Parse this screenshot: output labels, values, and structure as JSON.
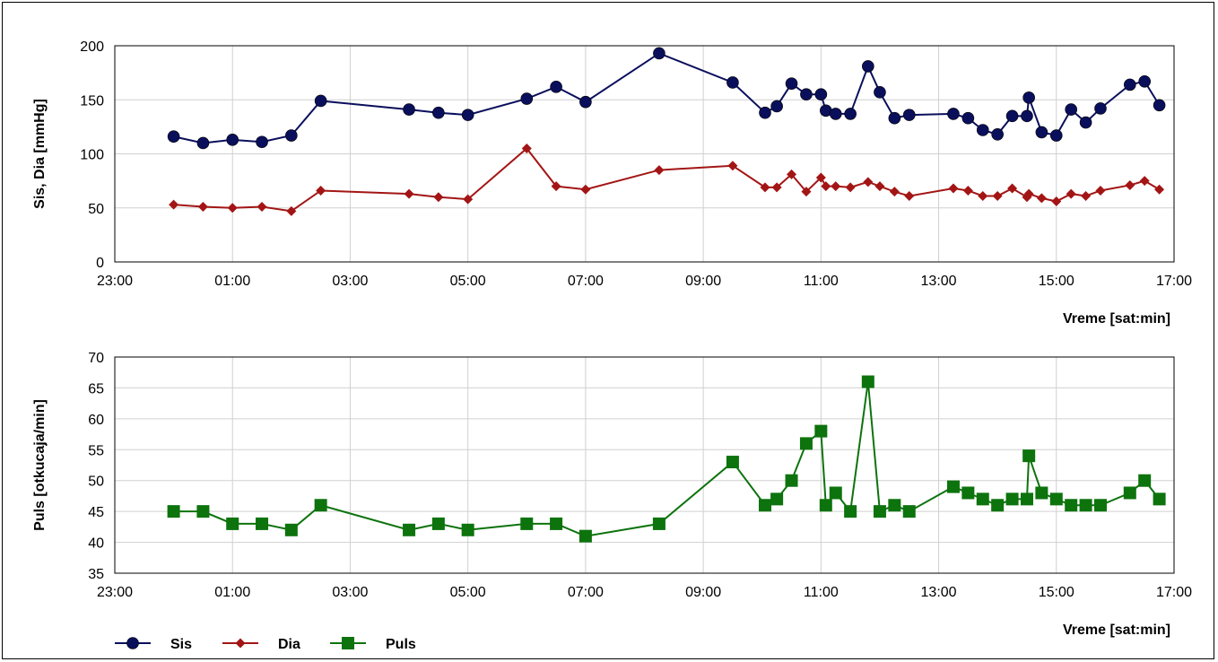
{
  "chart_data": [
    {
      "type": "line",
      "ylabel": "Sis, Dia [mmHg]",
      "xlabel": "Vreme [sat:min]",
      "ylim": [
        0,
        200
      ],
      "yticks": [
        0,
        50,
        100,
        150,
        200
      ],
      "xlim": [
        "23:00",
        "17:00"
      ],
      "xticks": [
        "23:00",
        "01:00",
        "03:00",
        "05:00",
        "07:00",
        "09:00",
        "11:00",
        "13:00",
        "15:00",
        "17:00"
      ],
      "grid": true,
      "series": [
        {
          "name": "Sis",
          "color": "#0a0f5c",
          "marker": "circle",
          "points": [
            [
              "00:00",
              116
            ],
            [
              "00:30",
              110
            ],
            [
              "01:00",
              113
            ],
            [
              "01:30",
              111
            ],
            [
              "02:00",
              117
            ],
            [
              "02:30",
              149
            ],
            [
              "04:00",
              141
            ],
            [
              "04:30",
              138
            ],
            [
              "05:00",
              136
            ],
            [
              "06:00",
              151
            ],
            [
              "06:30",
              162
            ],
            [
              "07:00",
              148
            ],
            [
              "08:15",
              193
            ],
            [
              "09:30",
              166
            ],
            [
              "10:03",
              138
            ],
            [
              "10:15",
              144
            ],
            [
              "10:30",
              165
            ],
            [
              "10:45",
              155
            ],
            [
              "11:00",
              155
            ],
            [
              "11:05",
              140
            ],
            [
              "11:15",
              137
            ],
            [
              "11:30",
              137
            ],
            [
              "11:48",
              181
            ],
            [
              "12:00",
              157
            ],
            [
              "12:15",
              133
            ],
            [
              "12:30",
              136
            ],
            [
              "13:15",
              137
            ],
            [
              "13:30",
              133
            ],
            [
              "13:45",
              122
            ],
            [
              "14:00",
              118
            ],
            [
              "14:15",
              135
            ],
            [
              "14:30",
              135
            ],
            [
              "14:32",
              152
            ],
            [
              "14:45",
              120
            ],
            [
              "15:00",
              117
            ],
            [
              "15:15",
              141
            ],
            [
              "15:30",
              129
            ],
            [
              "15:45",
              142
            ],
            [
              "16:15",
              164
            ],
            [
              "16:30",
              167
            ],
            [
              "16:45",
              145
            ]
          ]
        },
        {
          "name": "Dia",
          "color": "#a31515",
          "marker": "diamond",
          "points": [
            [
              "00:00",
              53
            ],
            [
              "00:30",
              51
            ],
            [
              "01:00",
              50
            ],
            [
              "01:30",
              51
            ],
            [
              "02:00",
              47
            ],
            [
              "02:30",
              66
            ],
            [
              "04:00",
              63
            ],
            [
              "04:30",
              60
            ],
            [
              "05:00",
              58
            ],
            [
              "06:00",
              105
            ],
            [
              "06:30",
              70
            ],
            [
              "07:00",
              67
            ],
            [
              "08:15",
              85
            ],
            [
              "09:30",
              89
            ],
            [
              "10:03",
              69
            ],
            [
              "10:15",
              69
            ],
            [
              "10:30",
              81
            ],
            [
              "10:45",
              65
            ],
            [
              "11:00",
              78
            ],
            [
              "11:05",
              70
            ],
            [
              "11:15",
              70
            ],
            [
              "11:30",
              69
            ],
            [
              "11:48",
              74
            ],
            [
              "12:00",
              70
            ],
            [
              "12:15",
              65
            ],
            [
              "12:30",
              61
            ],
            [
              "13:15",
              68
            ],
            [
              "13:30",
              66
            ],
            [
              "13:45",
              61
            ],
            [
              "14:00",
              61
            ],
            [
              "14:15",
              68
            ],
            [
              "14:30",
              60
            ],
            [
              "14:32",
              63
            ],
            [
              "14:45",
              59
            ],
            [
              "15:00",
              56
            ],
            [
              "15:15",
              63
            ],
            [
              "15:30",
              61
            ],
            [
              "15:45",
              66
            ],
            [
              "16:15",
              71
            ],
            [
              "16:30",
              75
            ],
            [
              "16:45",
              67
            ]
          ]
        }
      ]
    },
    {
      "type": "line",
      "ylabel": "Puls [otkucaja/min]",
      "xlabel": "Vreme [sat:min]",
      "ylim": [
        35,
        70
      ],
      "yticks": [
        35,
        40,
        45,
        50,
        55,
        60,
        65,
        70
      ],
      "xlim": [
        "23:00",
        "17:00"
      ],
      "xticks": [
        "23:00",
        "01:00",
        "03:00",
        "05:00",
        "07:00",
        "09:00",
        "11:00",
        "13:00",
        "15:00",
        "17:00"
      ],
      "grid": true,
      "series": [
        {
          "name": "Puls",
          "color": "#0d730d",
          "marker": "square",
          "points": [
            [
              "00:00",
              45
            ],
            [
              "00:30",
              45
            ],
            [
              "01:00",
              43
            ],
            [
              "01:30",
              43
            ],
            [
              "02:00",
              42
            ],
            [
              "02:30",
              46
            ],
            [
              "04:00",
              42
            ],
            [
              "04:30",
              43
            ],
            [
              "05:00",
              42
            ],
            [
              "06:00",
              43
            ],
            [
              "06:30",
              43
            ],
            [
              "07:00",
              41
            ],
            [
              "08:15",
              43
            ],
            [
              "09:30",
              53
            ],
            [
              "10:03",
              46
            ],
            [
              "10:15",
              47
            ],
            [
              "10:30",
              50
            ],
            [
              "10:45",
              56
            ],
            [
              "11:00",
              58
            ],
            [
              "11:05",
              46
            ],
            [
              "11:15",
              48
            ],
            [
              "11:30",
              45
            ],
            [
              "11:48",
              66
            ],
            [
              "12:00",
              45
            ],
            [
              "12:15",
              46
            ],
            [
              "12:30",
              45
            ],
            [
              "13:15",
              49
            ],
            [
              "13:30",
              48
            ],
            [
              "13:45",
              47
            ],
            [
              "14:00",
              46
            ],
            [
              "14:15",
              47
            ],
            [
              "14:30",
              47
            ],
            [
              "14:32",
              54
            ],
            [
              "14:45",
              48
            ],
            [
              "15:00",
              47
            ],
            [
              "15:15",
              46
            ],
            [
              "15:30",
              46
            ],
            [
              "15:45",
              46
            ],
            [
              "16:15",
              48
            ],
            [
              "16:30",
              50
            ],
            [
              "16:45",
              47
            ]
          ]
        }
      ]
    }
  ],
  "legend": {
    "position": "bottom-left",
    "items": [
      {
        "label": "Sis",
        "color": "#0a0f5c",
        "marker": "circle"
      },
      {
        "label": "Dia",
        "color": "#a31515",
        "marker": "diamond"
      },
      {
        "label": "Puls",
        "color": "#0d730d",
        "marker": "square"
      }
    ]
  }
}
